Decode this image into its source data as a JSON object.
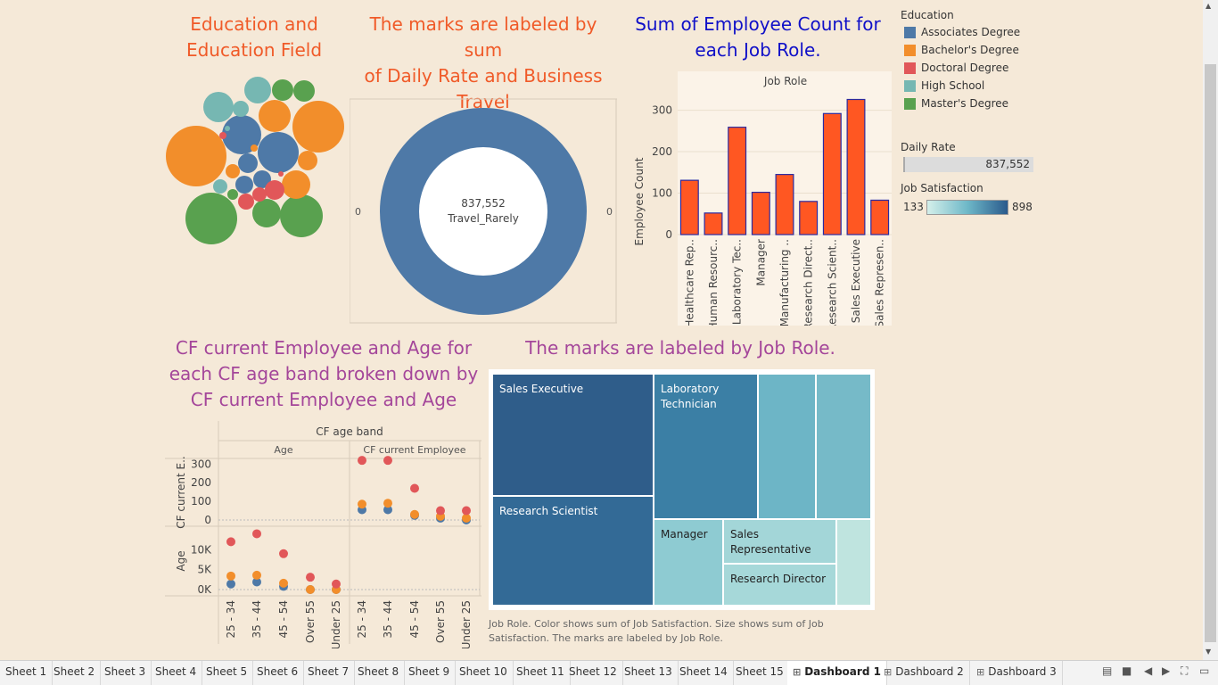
{
  "titles": {
    "edu": [
      "Education and",
      "Education Field"
    ],
    "donut": [
      "The marks are labeled by sum",
      "of Daily Rate and Business",
      "Travel"
    ],
    "bar": [
      "Sum of Employee Count for",
      "each Job Role."
    ],
    "cf": [
      "CF current Employee and Age for",
      "each CF age band broken down by",
      "CF current Employee and Age"
    ],
    "treemap": [
      "The marks are labeled by Job Role."
    ]
  },
  "colors": {
    "associates": "#4e79a7",
    "bachelors": "#f28e2b",
    "doctoral": "#e15759",
    "high_school": "#76b7b2",
    "masters": "#59a14f",
    "bar_fill": "#ff5722",
    "bar_stroke": "#2a2aa0"
  },
  "legend": {
    "title": "Education",
    "items": [
      {
        "label": "Associates Degree",
        "color": "#4e79a7"
      },
      {
        "label": "Bachelor's Degree",
        "color": "#f28e2b"
      },
      {
        "label": "Doctoral Degree",
        "color": "#e15759"
      },
      {
        "label": "High School",
        "color": "#76b7b2"
      },
      {
        "label": "Master's Degree",
        "color": "#59a14f"
      }
    ],
    "daily_rate_title": "Daily Rate",
    "daily_rate_value": "837,552",
    "job_sat_title": "Job Satisfaction",
    "job_sat_min": "133",
    "job_sat_max": "898"
  },
  "donut": {
    "value": "837,552",
    "label": "Travel_Rarely",
    "left_axis": "0",
    "right_axis": "0"
  },
  "chart_data": [
    {
      "type": "bar",
      "title": "Sum of Employee Count for each Job Role.",
      "header": "Job Role",
      "ylabel": "Employee Count",
      "categories": [
        "Healthcare Rep..",
        "Human Resourc..",
        "Laboratory Tec..",
        "Manager",
        "Manufacturing ..",
        "Research Direct..",
        "Research Scient..",
        "Sales Executive",
        "Sales Represen.."
      ],
      "values": [
        131,
        52,
        259,
        102,
        145,
        80,
        292,
        326,
        83
      ],
      "ylim": [
        0,
        340
      ],
      "yticks": [
        0,
        100,
        200,
        300
      ]
    },
    {
      "type": "scatter",
      "title": "CF current Employee and Age for each CF age band broken down by CF current Employee and Age",
      "header": "CF age band",
      "column_headers": [
        "Age",
        "CF current Employee"
      ],
      "row_labels": [
        "CF current E..",
        "Age"
      ],
      "categories": [
        "25 - 34",
        "35 - 44",
        "45 - 54",
        "Over 55",
        "Under 25"
      ],
      "top_ticks": [
        "300",
        "200",
        "100",
        "0"
      ],
      "bottom_ticks": [
        "10K",
        "5K",
        "0K"
      ],
      "top_row_cf_employee": {
        "doctoral": [
          320,
          320,
          170,
          50,
          50
        ],
        "bachelors": [
          85,
          90,
          30,
          20,
          10
        ],
        "associates": [
          55,
          55,
          25,
          10,
          0
        ]
      },
      "bottom_row_age": {
        "doctoral": [
          12000,
          14000,
          9000,
          3100,
          1400
        ],
        "bachelors": [
          3400,
          3600,
          1600,
          0,
          0
        ],
        "associates": [
          1400,
          1900,
          800,
          0,
          0
        ]
      }
    }
  ],
  "treemap": {
    "cells": [
      {
        "label": "Sales Executive",
        "color": "#2f5d8a"
      },
      {
        "label": "Research Scientist",
        "color": "#336a96"
      },
      {
        "label": "Laboratory Technician",
        "color": "#3b7fa5"
      },
      {
        "label": "",
        "color": "#6db5c6"
      },
      {
        "label": "",
        "color": "#76bac8"
      },
      {
        "label": "Manager",
        "color": "#8ecbd2"
      },
      {
        "label": "Sales Representative",
        "color": "#a3d6d8"
      },
      {
        "label": "Research Director",
        "color": "#a6d8d9"
      },
      {
        "label": "",
        "color": "#bfe4df"
      }
    ],
    "caption": [
      "Job Role.  Color shows sum of Job Satisfaction.  Size shows sum of Job",
      "Satisfaction.  The marks are labeled by Job Role."
    ]
  },
  "tabs": [
    {
      "label": "Sheet 1"
    },
    {
      "label": "Sheet 2"
    },
    {
      "label": "Sheet 3"
    },
    {
      "label": "Sheet 4"
    },
    {
      "label": "Sheet 5"
    },
    {
      "label": "Sheet 6"
    },
    {
      "label": "Sheet 7"
    },
    {
      "label": "Sheet 8"
    },
    {
      "label": "Sheet 9"
    },
    {
      "label": "Sheet 10"
    },
    {
      "label": "Sheet 11"
    },
    {
      "label": "Sheet 12"
    },
    {
      "label": "Sheet 13"
    },
    {
      "label": "Sheet 14"
    },
    {
      "label": "Sheet 15"
    },
    {
      "label": "Dashboard 1",
      "icon": "grid-icon",
      "active": true
    },
    {
      "label": "Dashboard 2",
      "icon": "grid-icon"
    },
    {
      "label": "Dashboard 3",
      "icon": "grid-icon"
    }
  ]
}
